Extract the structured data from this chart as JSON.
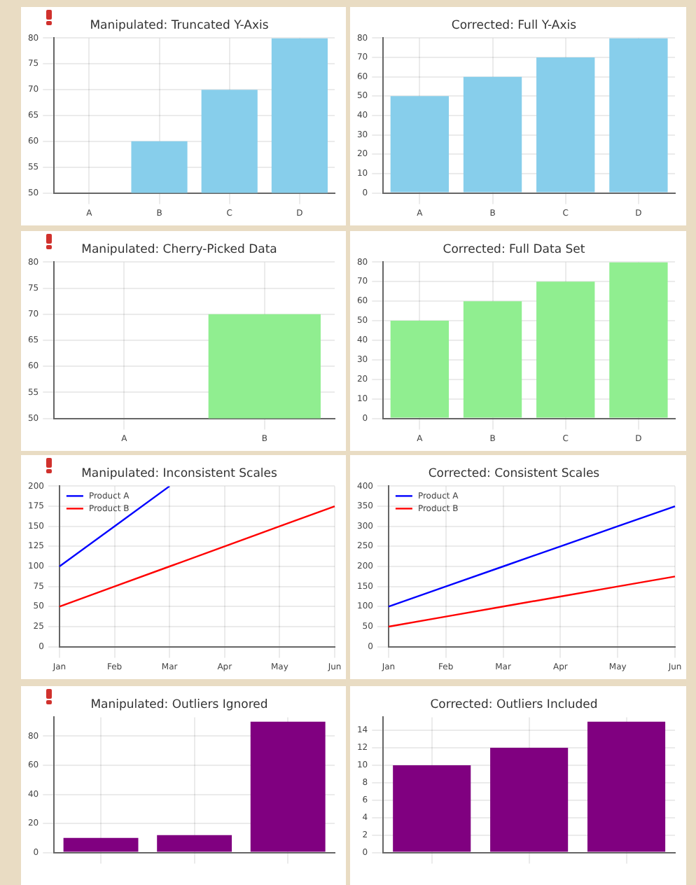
{
  "chart_data": [
    {
      "type": "bar",
      "title": "Manipulated: Truncated Y-Axis",
      "categories": [
        "A",
        "B",
        "C",
        "D"
      ],
      "values": [
        null,
        60,
        70,
        80
      ],
      "color": "#87ceeb",
      "ylim": [
        50,
        80
      ],
      "yticks": [
        50,
        55,
        60,
        65,
        70,
        75,
        80
      ],
      "grid": true
    },
    {
      "type": "bar",
      "title": "Corrected: Full Y-Axis",
      "categories": [
        "A",
        "B",
        "C",
        "D"
      ],
      "values": [
        50,
        60,
        70,
        80
      ],
      "color": "#87ceeb",
      "ylim": [
        0,
        80
      ],
      "yticks": [
        0,
        10,
        20,
        30,
        40,
        50,
        60,
        70,
        80
      ],
      "grid": true
    },
    {
      "type": "bar",
      "title": "Manipulated: Cherry-Picked Data",
      "categories": [
        "A",
        "B"
      ],
      "values": [
        null,
        70
      ],
      "color": "#90ee90",
      "ylim": [
        50,
        80
      ],
      "yticks": [
        50,
        55,
        60,
        65,
        70,
        75,
        80
      ],
      "grid": true
    },
    {
      "type": "bar",
      "title": "Corrected: Full Data Set",
      "categories": [
        "A",
        "B",
        "C",
        "D"
      ],
      "values": [
        50,
        60,
        70,
        80
      ],
      "color": "#90ee90",
      "ylim": [
        0,
        80
      ],
      "yticks": [
        0,
        10,
        20,
        30,
        40,
        50,
        60,
        70,
        80
      ],
      "grid": true
    },
    {
      "type": "line",
      "title": "Manipulated: Inconsistent Scales",
      "categories": [
        "Jan",
        "Feb",
        "Mar",
        "Apr",
        "May",
        "Jun"
      ],
      "series": [
        {
          "name": "Product A",
          "color": "#0000ff",
          "values": [
            100,
            150,
            200,
            null,
            null,
            null
          ]
        },
        {
          "name": "Product B",
          "color": "#ff0000",
          "values": [
            50,
            75,
            100,
            125,
            150,
            175
          ]
        }
      ],
      "ylim": [
        0,
        200
      ],
      "yticks": [
        0,
        25,
        50,
        75,
        100,
        125,
        150,
        175,
        200
      ],
      "grid": true,
      "legend": "top left",
      "marker": "none"
    },
    {
      "type": "line",
      "title": "Corrected: Consistent Scales",
      "categories": [
        "Jan",
        "Feb",
        "Mar",
        "Apr",
        "May",
        "Jun"
      ],
      "series": [
        {
          "name": "Product A",
          "color": "#0000ff",
          "values": [
            100,
            150,
            200,
            250,
            300,
            350
          ]
        },
        {
          "name": "Product B",
          "color": "#ff0000",
          "values": [
            50,
            75,
            100,
            125,
            150,
            175
          ]
        }
      ],
      "ylim": [
        0,
        400
      ],
      "yticks": [
        0,
        50,
        100,
        150,
        200,
        250,
        300,
        350,
        400
      ],
      "grid": true,
      "legend": "top left",
      "marker": "none"
    },
    {
      "type": "bar",
      "title": "Manipulated: Outliers Ignored",
      "categories": [
        null,
        null,
        null
      ],
      "values": [
        10,
        12,
        90
      ],
      "color": "#800080",
      "ylim": [
        0,
        93
      ],
      "yticks": [
        0,
        20,
        40,
        60,
        80
      ],
      "grid": true
    },
    {
      "type": "bar",
      "title": "Corrected: Outliers Included",
      "categories": [
        null,
        null,
        null
      ],
      "values": [
        10,
        12,
        15
      ],
      "color": "#800080",
      "ylim": [
        0,
        15.5
      ],
      "yticks": [
        0,
        2,
        4,
        6,
        8,
        10,
        12,
        14
      ],
      "grid": true
    }
  ]
}
